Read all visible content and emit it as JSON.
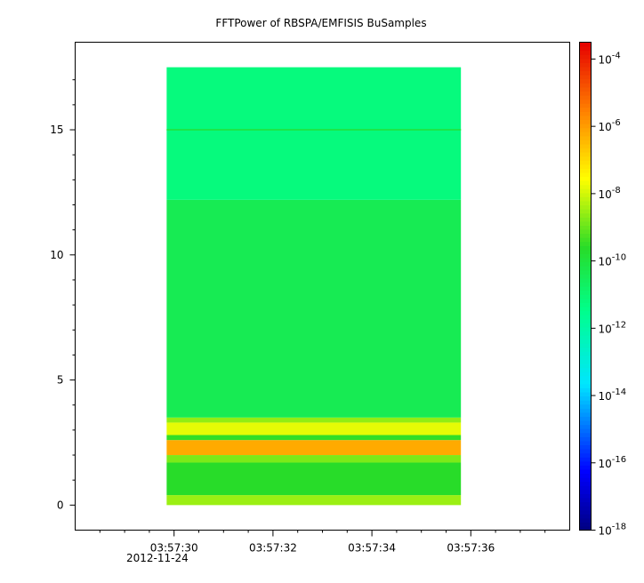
{
  "chart_data": {
    "type": "heatmap",
    "title": "FFTPower of RBSPA/EMFISIS  BuSamples",
    "x": {
      "ticks": [
        "03:57:30",
        "03:57:32",
        "03:57:34",
        "03:57:36"
      ],
      "tick_seconds": [
        30,
        32,
        34,
        36
      ],
      "sub_label": "2012-11-24",
      "range_seconds": [
        28.0,
        38.0
      ],
      "data_extent_seconds": [
        29.85,
        35.8
      ]
    },
    "y": {
      "ticks": [
        "0",
        "5",
        "10",
        "15"
      ],
      "tick_values": [
        0,
        5,
        10,
        15
      ],
      "range": [
        -1,
        18.5
      ],
      "data_extent": [
        0,
        17.5
      ]
    },
    "colorbar": {
      "scale": "log",
      "ticks": [
        "10-4",
        "10-6",
        "10-8",
        "10-10",
        "10-12",
        "10-14",
        "10-16",
        "10-18"
      ],
      "tick_exponents": [
        -4,
        -6,
        -8,
        -10,
        -12,
        -14,
        -16,
        -18
      ],
      "range_exponents": [
        -18,
        -3.5
      ]
    },
    "bands": [
      {
        "y_from": 0.0,
        "y_to": 0.4,
        "level_exponent": -8.5
      },
      {
        "y_from": 0.4,
        "y_to": 1.7,
        "level_exponent": -9.6
      },
      {
        "y_from": 1.7,
        "y_to": 2.0,
        "level_exponent": -8.8
      },
      {
        "y_from": 2.0,
        "y_to": 2.6,
        "level_exponent": -6.2
      },
      {
        "y_from": 2.6,
        "y_to": 2.8,
        "level_exponent": -9.5
      },
      {
        "y_from": 2.8,
        "y_to": 3.3,
        "level_exponent": -7.8
      },
      {
        "y_from": 3.3,
        "y_to": 3.5,
        "level_exponent": -8.6
      },
      {
        "y_from": 3.5,
        "y_to": 12.2,
        "level_exponent": -10.4
      },
      {
        "y_from": 12.2,
        "y_to": 17.5,
        "level_exponent": -11.2
      }
    ],
    "lines": [
      {
        "y": 15.0,
        "level_exponent": -10.2
      }
    ],
    "grid": false
  }
}
